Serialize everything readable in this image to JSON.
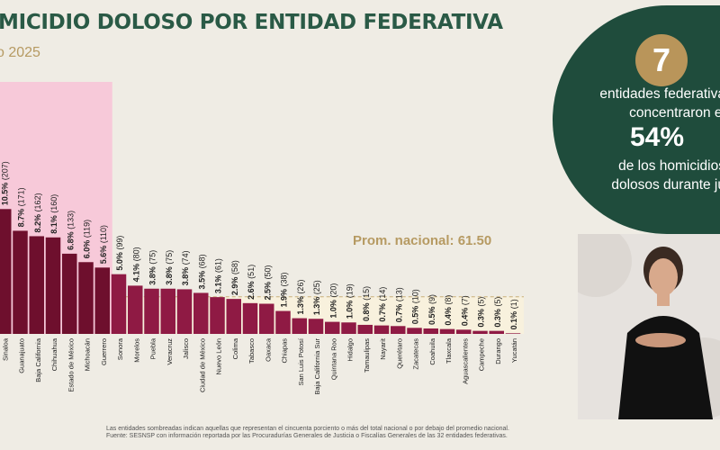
{
  "header": {
    "title": "MICIDIO DOLOSO POR ENTIDAD FEDERATIVA",
    "subtitle": "o 2025"
  },
  "summary": {
    "count": "7",
    "line1": "entidades federativa",
    "line2": "concentraron el",
    "percent": "54%",
    "line3": "de los homicidios",
    "line4": "dolosos durante ju"
  },
  "average_label": "Prom. nacional: 61.50",
  "footnote1": "Las entidades sombreadas indican aquellas que representan el cincuenta porciento o más del total nacional o por debajo del promedio nacional.",
  "footnote2": "Fuente: SESNSP con información reportada por las Procuradurías Generales de Justicia o Fiscalías Generales de las 32 entidades federativas.",
  "colors": {
    "highlight": "#6e0f2d",
    "normal": "#8f1a44",
    "band": "#f7c9d9",
    "green": "#1f4c3c",
    "gold": "#b69a62"
  },
  "chart_data": {
    "type": "bar",
    "categories": [
      "Sinaloa",
      "Guanajuato",
      "Baja California",
      "Chihuahua",
      "Estado de México",
      "Michoacán",
      "Guerrero",
      "Sonora",
      "Morelos",
      "Puebla",
      "Veracruz",
      "Jalisco",
      "Ciudad de México",
      "Nuevo León",
      "Colima",
      "Tabasco",
      "Oaxaca",
      "Chiapas",
      "San Luis Potosí",
      "Baja California Sur",
      "Quintana Roo",
      "Hidalgo",
      "Tamaulipas",
      "Nayarit",
      "Querétaro",
      "Zacatecas",
      "Coahuila",
      "Tlaxcala",
      "Aguascalientes",
      "Campeche",
      "Durango",
      "Yucatán"
    ],
    "values": [
      207,
      171,
      162,
      160,
      133,
      119,
      110,
      99,
      80,
      75,
      75,
      74,
      68,
      61,
      58,
      51,
      50,
      38,
      26,
      25,
      20,
      19,
      15,
      14,
      13,
      10,
      9,
      8,
      7,
      5,
      5,
      1
    ],
    "percents": [
      "10.5%",
      "8.7%",
      "8.2%",
      "8.1%",
      "6.8%",
      "6.0%",
      "5.6%",
      "5.0%",
      "4.1%",
      "3.8%",
      "3.8%",
      "3.8%",
      "3.5%",
      "3.1%",
      "2.9%",
      "2.6%",
      "2.5%",
      "1.9%",
      "1.3%",
      "1.3%",
      "1.0%",
      "1.0%",
      "0.8%",
      "0.7%",
      "0.7%",
      "0.5%",
      "0.5%",
      "0.4%",
      "0.4%",
      "0.3%",
      "0.3%",
      "0.1%"
    ],
    "counts": [
      "(207)",
      "(171)",
      "(162)",
      "(160)",
      "(133)",
      "(119)",
      "(110)",
      "(99)",
      "(80)",
      "(75)",
      "(75)",
      "(74)",
      "(68)",
      "(61)",
      "(58)",
      "(51)",
      "(50)",
      "(38)",
      "(26)",
      "(25)",
      "(20)",
      "(19)",
      "(15)",
      "(14)",
      "(13)",
      "(10)",
      "(9)",
      "(8)",
      "(7)",
      "(5)",
      "(5)",
      "(1)"
    ],
    "highlighted_count": 7,
    "average": 61.5
  }
}
